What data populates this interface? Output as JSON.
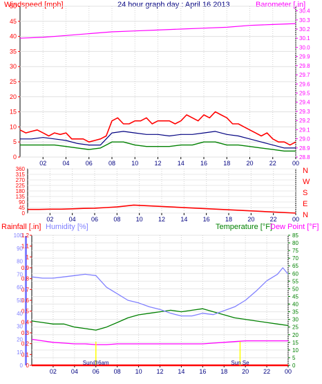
{
  "chart_data": [
    {
      "type": "line",
      "title": "24 hour graph day : April 16 2013",
      "series": [
        {
          "name": "Windspeed [mph]",
          "color": "#ff0000",
          "x": [
            0,
            0.5,
            1,
            1.5,
            2,
            2.5,
            3,
            3.5,
            4,
            4.5,
            5,
            5.5,
            6,
            6.5,
            7,
            7.5,
            8,
            8.5,
            9,
            9.5,
            10,
            10.5,
            11,
            11.5,
            12,
            12.5,
            13,
            13.5,
            14,
            14.5,
            15,
            15.5,
            16,
            16.5,
            17,
            17.5,
            18,
            18.5,
            19,
            19.5,
            20,
            20.5,
            21,
            21.5,
            22,
            22.5,
            23,
            23.5,
            24
          ],
          "values": [
            9,
            8,
            8.5,
            9,
            8,
            7,
            8,
            7.5,
            8,
            6,
            6,
            6,
            5,
            5.5,
            6,
            7,
            12,
            13,
            11,
            11,
            12,
            12,
            13,
            11,
            12,
            12,
            12,
            11,
            12,
            14,
            13,
            12,
            14,
            13,
            15,
            14,
            13,
            11,
            11,
            10,
            9,
            8,
            7,
            8,
            6,
            5,
            5,
            4,
            5
          ]
        },
        {
          "name": "",
          "color": "#000080",
          "x": [
            0,
            1,
            2,
            3,
            4,
            5,
            6,
            7,
            8,
            9,
            10,
            11,
            12,
            13,
            14,
            15,
            16,
            17,
            18,
            19,
            20,
            21,
            22,
            23,
            24
          ],
          "values": [
            6,
            6,
            6.5,
            6,
            5.5,
            4.5,
            4,
            4,
            8,
            8.5,
            8,
            7.5,
            7.5,
            7,
            7.5,
            7.5,
            8,
            8.5,
            7.5,
            7,
            6,
            5,
            4,
            3,
            3
          ]
        },
        {
          "name": "",
          "color": "#008000",
          "x": [
            0,
            1,
            2,
            3,
            4,
            5,
            6,
            7,
            8,
            9,
            10,
            11,
            12,
            13,
            14,
            15,
            16,
            17,
            18,
            19,
            20,
            21,
            22,
            23,
            24
          ],
          "values": [
            4,
            4,
            4,
            4,
            3.5,
            3,
            2.5,
            3,
            5,
            5,
            4,
            3.5,
            3.5,
            3.5,
            4,
            4,
            5,
            5,
            4,
            4,
            3.5,
            3,
            2.5,
            2,
            2
          ]
        }
      ],
      "x_tick_labels": [
        "02",
        "04",
        "06",
        "08",
        "10",
        "12",
        "14",
        "16",
        "18",
        "20",
        "22",
        "00"
      ],
      "ylim": [
        0,
        50
      ],
      "y_ticks": [
        0,
        5,
        10,
        15,
        20,
        25,
        30,
        35,
        40,
        45,
        50
      ]
    },
    {
      "type": "line",
      "series": [
        {
          "name": "Barometer [.in]",
          "color": "#ff00ff",
          "x": [
            0,
            2,
            4,
            6,
            8,
            10,
            12,
            14,
            16,
            18,
            20,
            22,
            24
          ],
          "values": [
            30.1,
            30.11,
            30.13,
            30.15,
            30.17,
            30.18,
            30.19,
            30.2,
            30.21,
            30.22,
            30.24,
            30.25,
            30.26
          ]
        }
      ],
      "ylim": [
        28.8,
        30.45
      ],
      "y_ticks": [
        28.8,
        28.9,
        29,
        29.1,
        29.2,
        29.3,
        29.4,
        29.5,
        29.6,
        29.7,
        29.8,
        29.9,
        30,
        30.1,
        30.2,
        30.3,
        30.4
      ]
    },
    {
      "type": "line",
      "series": [
        {
          "name": "",
          "color": "#ff0000",
          "x": [
            0,
            1,
            2,
            3,
            4,
            5,
            6,
            7,
            8,
            9,
            9.5,
            24
          ],
          "values": [
            30,
            30,
            32,
            32,
            35,
            38,
            40,
            45,
            50,
            60,
            65,
            0
          ]
        }
      ],
      "y_ticks": [
        0,
        45,
        90,
        135,
        180,
        225,
        270,
        315,
        360
      ],
      "ylim": [
        0,
        360
      ],
      "direction_labels": [
        "N",
        "W",
        "S",
        "E",
        "N"
      ]
    },
    {
      "type": "line",
      "series": [
        {
          "name": "Rainfall [.in]",
          "color": "#ff0000",
          "x": [
            0,
            24
          ],
          "values": [
            0,
            0
          ]
        },
        {
          "name": "Humidity [%]",
          "color": "#8080ff",
          "x": [
            0,
            1,
            2,
            3,
            4,
            5,
            6,
            7,
            8,
            9,
            10,
            11,
            12,
            13,
            14,
            15,
            16,
            17,
            18,
            19,
            20,
            21,
            22,
            23,
            23.5,
            24
          ],
          "values": [
            68,
            67,
            67,
            68,
            69,
            70,
            69,
            60,
            55,
            50,
            48,
            45,
            43,
            40,
            38,
            38,
            40,
            39,
            42,
            45,
            50,
            57,
            65,
            70,
            75,
            70
          ]
        },
        {
          "name": "Temperature [°F]",
          "color": "#008000",
          "x": [
            0,
            1,
            2,
            3,
            4,
            5,
            6,
            7,
            8,
            9,
            10,
            11,
            12,
            13,
            14,
            15,
            16,
            17,
            18,
            19,
            20,
            21,
            22,
            23,
            24
          ],
          "values": [
            29,
            28,
            27,
            27,
            25,
            24,
            23,
            25,
            28,
            31,
            33,
            34,
            35,
            36,
            35,
            36,
            37,
            35,
            33,
            31,
            30,
            29,
            28,
            27,
            26
          ]
        },
        {
          "name": "Dew Point [°F]",
          "color": "#ff00ff",
          "x": [
            0,
            1,
            2,
            3,
            4,
            5,
            6,
            7,
            8,
            9,
            10,
            11,
            12,
            13,
            14,
            15,
            16,
            17,
            18,
            19,
            20,
            21,
            22,
            23,
            24
          ],
          "values": [
            17,
            16,
            15,
            14.5,
            14,
            14,
            13.5,
            13.5,
            14,
            14,
            14,
            14,
            14,
            14,
            14,
            14,
            14,
            14.5,
            15,
            15.5,
            16,
            16,
            16,
            16,
            16
          ]
        }
      ],
      "left_ticks": [
        0,
        0.1,
        0.2,
        0.3,
        0.4,
        0.5,
        0.6,
        0.7,
        0.8,
        0.9,
        1,
        1.1,
        1.2
      ],
      "humidity_ticks": [
        0,
        10,
        20,
        30,
        40,
        50,
        60,
        70,
        80,
        90,
        100
      ],
      "right_ticks": [
        0,
        5,
        10,
        15,
        20,
        25,
        30,
        35,
        40,
        45,
        50,
        55,
        60,
        65,
        70,
        75,
        80,
        85
      ],
      "right_ylim": [
        0,
        85
      ],
      "events": [
        {
          "label": "Sun@6am",
          "x": 6
        },
        {
          "label": "Sun Se",
          "x": 19.5
        }
      ]
    }
  ]
}
